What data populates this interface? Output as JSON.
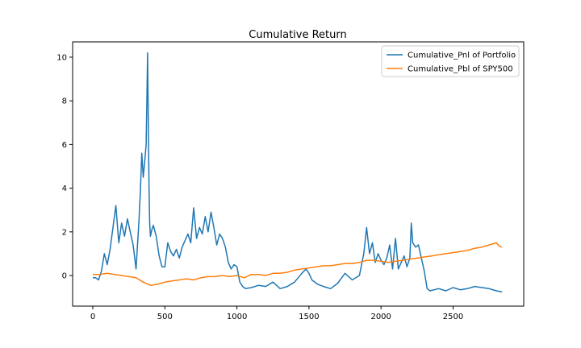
{
  "chart_data": {
    "type": "line",
    "title": "Cumulative Return",
    "xlabel": "",
    "ylabel": "",
    "xlim": [
      -140,
      2990
    ],
    "ylim": [
      -1.4,
      10.7
    ],
    "xticks": [
      0,
      500,
      1000,
      1500,
      2000,
      2500
    ],
    "yticks": [
      0,
      2,
      4,
      6,
      8,
      10
    ],
    "grid": false,
    "legend_position": "top-right",
    "series": [
      {
        "name": "Cumulative_Pnl of Portfolio",
        "color": "#1f77b4",
        "x": [
          0,
          20,
          40,
          60,
          80,
          100,
          120,
          140,
          160,
          180,
          200,
          220,
          240,
          260,
          280,
          300,
          320,
          330,
          340,
          350,
          360,
          370,
          375,
          380,
          385,
          390,
          395,
          400,
          410,
          420,
          440,
          460,
          480,
          500,
          520,
          540,
          560,
          580,
          600,
          620,
          640,
          660,
          680,
          700,
          720,
          740,
          760,
          780,
          800,
          820,
          840,
          860,
          880,
          900,
          920,
          940,
          960,
          980,
          1000,
          1020,
          1040,
          1060,
          1100,
          1150,
          1200,
          1250,
          1300,
          1350,
          1400,
          1450,
          1480,
          1500,
          1520,
          1560,
          1600,
          1650,
          1700,
          1750,
          1800,
          1850,
          1880,
          1900,
          1920,
          1940,
          1960,
          1980,
          2000,
          2020,
          2040,
          2060,
          2080,
          2100,
          2120,
          2140,
          2160,
          2180,
          2200,
          2210,
          2220,
          2240,
          2260,
          2280,
          2300,
          2320,
          2340,
          2400,
          2450,
          2500,
          2550,
          2600,
          2650,
          2700,
          2750,
          2800,
          2840
        ],
        "y": [
          -0.1,
          -0.1,
          -0.2,
          0.2,
          1.0,
          0.5,
          1.2,
          2.2,
          3.2,
          1.5,
          2.4,
          1.8,
          2.6,
          2.0,
          1.4,
          0.3,
          2.5,
          3.8,
          5.6,
          4.5,
          5.2,
          6.0,
          8.0,
          10.2,
          7.0,
          4.0,
          2.4,
          1.8,
          2.1,
          2.3,
          1.8,
          0.9,
          0.4,
          0.4,
          1.5,
          1.1,
          0.9,
          1.2,
          0.8,
          1.3,
          1.6,
          1.9,
          1.5,
          3.1,
          1.7,
          2.2,
          1.9,
          2.7,
          2.0,
          2.9,
          2.2,
          1.4,
          1.9,
          1.7,
          1.3,
          0.6,
          0.3,
          0.5,
          0.4,
          -0.3,
          -0.5,
          -0.6,
          -0.55,
          -0.45,
          -0.5,
          -0.3,
          -0.6,
          -0.5,
          -0.3,
          0.1,
          0.3,
          0.1,
          -0.2,
          -0.4,
          -0.5,
          -0.6,
          -0.35,
          0.1,
          -0.2,
          0.0,
          1.0,
          2.2,
          1.0,
          1.5,
          0.6,
          1.0,
          0.7,
          0.5,
          0.8,
          1.4,
          0.3,
          1.7,
          0.3,
          0.6,
          0.9,
          0.4,
          0.8,
          2.4,
          1.5,
          1.3,
          1.4,
          0.8,
          0.2,
          -0.6,
          -0.7,
          -0.6,
          -0.7,
          -0.55,
          -0.65,
          -0.6,
          -0.5,
          -0.55,
          -0.6,
          -0.7,
          -0.75
        ]
      },
      {
        "name": "Cumulative_Pbl of SPY500",
        "color": "#ff7f0e",
        "x": [
          0,
          50,
          100,
          150,
          200,
          250,
          300,
          350,
          400,
          450,
          500,
          550,
          600,
          650,
          700,
          750,
          800,
          850,
          900,
          950,
          1000,
          1050,
          1100,
          1150,
          1200,
          1250,
          1300,
          1350,
          1400,
          1450,
          1500,
          1550,
          1600,
          1650,
          1700,
          1750,
          1800,
          1850,
          1900,
          1950,
          2000,
          2050,
          2100,
          2150,
          2200,
          2250,
          2300,
          2350,
          2400,
          2450,
          2500,
          2550,
          2600,
          2650,
          2700,
          2750,
          2800,
          2820,
          2840
        ],
        "y": [
          0.05,
          0.05,
          0.1,
          0.05,
          0.0,
          -0.05,
          -0.1,
          -0.3,
          -0.45,
          -0.4,
          -0.3,
          -0.25,
          -0.2,
          -0.15,
          -0.2,
          -0.1,
          -0.05,
          -0.05,
          0.0,
          -0.05,
          0.0,
          -0.1,
          0.05,
          0.05,
          0.0,
          0.1,
          0.1,
          0.15,
          0.25,
          0.3,
          0.35,
          0.4,
          0.45,
          0.45,
          0.5,
          0.55,
          0.55,
          0.6,
          0.7,
          0.7,
          0.65,
          0.6,
          0.65,
          0.7,
          0.75,
          0.8,
          0.85,
          0.9,
          0.95,
          1.0,
          1.05,
          1.1,
          1.15,
          1.25,
          1.3,
          1.4,
          1.5,
          1.35,
          1.3
        ]
      }
    ]
  }
}
